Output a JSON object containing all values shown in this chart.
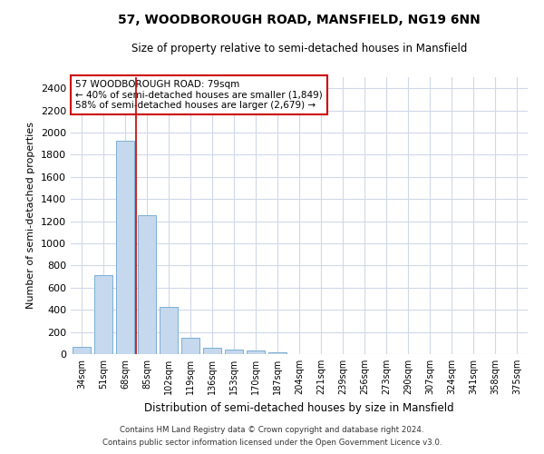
{
  "title": "57, WOODBOROUGH ROAD, MANSFIELD, NG19 6NN",
  "subtitle": "Size of property relative to semi-detached houses in Mansfield",
  "xlabel": "Distribution of semi-detached houses by size in Mansfield",
  "ylabel": "Number of semi-detached properties",
  "categories": [
    "34sqm",
    "51sqm",
    "68sqm",
    "85sqm",
    "102sqm",
    "119sqm",
    "136sqm",
    "153sqm",
    "170sqm",
    "187sqm",
    "204sqm",
    "221sqm",
    "239sqm",
    "256sqm",
    "273sqm",
    "290sqm",
    "307sqm",
    "324sqm",
    "341sqm",
    "358sqm",
    "375sqm"
  ],
  "values": [
    68,
    710,
    1930,
    1255,
    430,
    145,
    58,
    42,
    30,
    20,
    0,
    0,
    0,
    0,
    0,
    0,
    0,
    0,
    0,
    0,
    0
  ],
  "bar_color": "#c5d8ed",
  "bar_edge_color": "#7bafd4",
  "property_line_color": "#c00000",
  "property_line_x": 2.5,
  "annotation_text": "57 WOODBOROUGH ROAD: 79sqm\n← 40% of semi-detached houses are smaller (1,849)\n58% of semi-detached houses are larger (2,679) →",
  "annotation_box_color": "#cc0000",
  "ylim": [
    0,
    2500
  ],
  "yticks": [
    0,
    200,
    400,
    600,
    800,
    1000,
    1200,
    1400,
    1600,
    1800,
    2000,
    2200,
    2400
  ],
  "footer_line1": "Contains HM Land Registry data © Crown copyright and database right 2024.",
  "footer_line2": "Contains public sector information licensed under the Open Government Licence v3.0.",
  "background_color": "#ffffff",
  "grid_color": "#d0d8e8"
}
